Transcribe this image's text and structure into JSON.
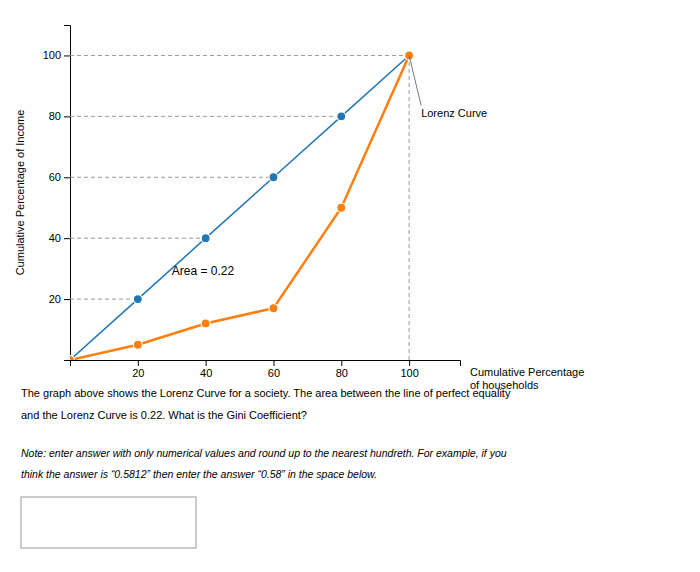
{
  "chart_data": {
    "type": "line",
    "x": [
      0,
      20,
      40,
      60,
      80,
      100
    ],
    "series": [
      {
        "values": [
          0,
          20,
          40,
          60,
          80,
          100
        ],
        "marker": "circle"
      },
      {
        "name": "Lorenz Curve",
        "values": [
          0,
          5,
          12,
          17,
          50,
          100
        ],
        "marker": "circle"
      }
    ],
    "xlabel": "Cumulative Percentage\nof households",
    "ylabel": "Cumulative Percentage of Income",
    "xlim": [
      0,
      115
    ],
    "ylim": [
      0,
      110
    ],
    "xticks": [
      20,
      40,
      60,
      80,
      100
    ],
    "yticks": [
      20,
      40,
      60,
      80,
      100
    ],
    "annotations": [
      {
        "text": "Area = 0.22",
        "x": 30,
        "y": 28
      }
    ],
    "caption": [
      "The graph above shows the Lorenz Curve for a society. The area between the line of perfect equality",
      "and the Lorenz Curve is 0.22. What is the Gini Coefficient?"
    ],
    "footnote": [
      "Note: enter answer with only numerical values and round up to the nearest hundreth. For example, if you",
      "think the answer is “0.5812” then enter the answer “0.58” in the space below."
    ]
  }
}
